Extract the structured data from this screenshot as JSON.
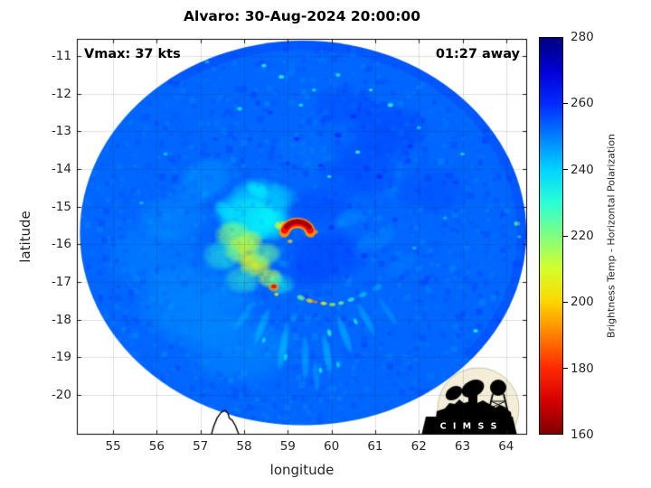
{
  "title": "Alvaro: 30-Aug-2024 20:00:00",
  "annotations": {
    "vmax": "Vmax: 37 kts",
    "eta": "01:27 away"
  },
  "axes": {
    "xlabel": "longitude",
    "ylabel": "latitude",
    "xticks": [
      55,
      56,
      57,
      58,
      59,
      60,
      61,
      62,
      63,
      64
    ],
    "yticks": [
      -11,
      -12,
      -13,
      -14,
      -15,
      -16,
      -17,
      -18,
      -19,
      -20
    ]
  },
  "colorbar": {
    "label": "Brightness Temp - Horizontal Polarization",
    "ticks": [
      280,
      260,
      240,
      220,
      200,
      180,
      160
    ],
    "range": [
      160,
      280
    ],
    "colormap": "jet-reversed"
  },
  "logo": {
    "text": "C I M S S"
  },
  "chart_data": {
    "type": "heatmap",
    "title": "Alvaro: 30-Aug-2024 20:00:00",
    "storm": {
      "name": "Alvaro",
      "vmax_kts": 37,
      "time_to_pass": "01:27 away",
      "datetime": "30-Aug-2024 20:00:00"
    },
    "xlabel": "longitude",
    "ylabel": "latitude",
    "value_label": "Brightness Temp - Horizontal Polarization",
    "value_range_k": [
      160,
      280
    ],
    "xlim": [
      54.17,
      64.48
    ],
    "ylim": [
      -21.06,
      -10.54
    ],
    "grid": true,
    "disc": {
      "center_lon": 59.35,
      "center_lat": -15.7,
      "radius_deg": 5.11
    },
    "base_temp_k": 253,
    "noise": {
      "seed": 42,
      "pass1": {
        "count": 2600,
        "amp": 6,
        "alpha": 0.45,
        "size": 5
      },
      "pass2": {
        "count": 1500,
        "amp": 5,
        "alpha": 0.14,
        "size": 5
      }
    },
    "shading": [
      [
        58.35,
        -14.9,
        238,
        0.8,
        0.7,
        0,
        0.8
      ],
      [
        58.15,
        -15.35,
        233,
        0.75,
        0.6,
        0,
        0.85
      ],
      [
        58.55,
        -15.45,
        236,
        0.6,
        0.5,
        0,
        0.8
      ],
      [
        57.9,
        -15.15,
        240,
        0.65,
        0.55,
        0,
        0.7
      ],
      [
        58.75,
        -14.75,
        242,
        0.5,
        0.4,
        0,
        0.6
      ],
      [
        57.75,
        -15.75,
        220,
        0.45,
        0.4,
        0,
        0.85
      ],
      [
        57.95,
        -16.15,
        210,
        0.45,
        0.4,
        0,
        0.9
      ],
      [
        58.25,
        -16.55,
        208,
        0.4,
        0.35,
        0,
        0.9
      ],
      [
        58.6,
        -16.9,
        213,
        0.32,
        0.28,
        0,
        0.85
      ],
      [
        58.15,
        -15.9,
        215,
        0.32,
        0.3,
        0,
        0.8
      ],
      [
        58.5,
        -16.25,
        222,
        0.38,
        0.33,
        0,
        0.7
      ],
      [
        57.5,
        -16.3,
        230,
        0.5,
        0.45,
        0,
        0.6
      ],
      [
        57.95,
        -16.95,
        228,
        0.45,
        0.4,
        0,
        0.6
      ],
      [
        58.85,
        -17.05,
        232,
        0.35,
        0.3,
        0,
        0.6
      ],
      [
        56.9,
        -17.6,
        246,
        1.5,
        1.2,
        0,
        0.5
      ],
      [
        57.9,
        -18.8,
        247,
        1.4,
        1.0,
        0,
        0.5
      ],
      [
        55.9,
        -16.3,
        248,
        1.2,
        1.0,
        0,
        0.45
      ],
      [
        57.1,
        -14.3,
        244,
        0.8,
        0.6,
        -30,
        0.4
      ],
      [
        56.35,
        -15.3,
        246,
        0.9,
        0.7,
        0,
        0.4
      ],
      [
        59.9,
        -16.3,
        259,
        1.0,
        0.8,
        0,
        0.5
      ],
      [
        59.45,
        -16.8,
        257,
        0.65,
        0.5,
        0,
        0.5
      ],
      [
        59.75,
        -15.0,
        258,
        0.8,
        0.6,
        0,
        0.45
      ],
      [
        60.6,
        -14.0,
        259,
        1.0,
        0.8,
        0,
        0.4
      ],
      [
        61.3,
        -13.0,
        260,
        1.0,
        0.8,
        0,
        0.4
      ],
      [
        62.3,
        -14.6,
        258,
        0.9,
        0.7,
        0,
        0.35
      ],
      [
        60.3,
        -12.3,
        259,
        0.8,
        0.6,
        0,
        0.35
      ],
      [
        61.0,
        -15.9,
        248,
        0.6,
        0.3,
        -25,
        0.5
      ],
      [
        61.6,
        -16.55,
        250,
        0.5,
        0.28,
        -35,
        0.5
      ],
      [
        60.4,
        -15.3,
        247,
        0.4,
        0.25,
        -20,
        0.5
      ],
      [
        63.2,
        -16.2,
        252,
        0.8,
        0.6,
        0,
        0.35
      ],
      [
        59.5,
        -13.6,
        250,
        0.9,
        0.5,
        10,
        0.35
      ],
      [
        60.9,
        -17.9,
        252,
        0.8,
        0.5,
        -40,
        0.4
      ]
    ],
    "features": [
      [
        58.85,
        -15.5,
        207,
        0.18,
        0.14,
        0,
        0.9
      ],
      [
        59.05,
        -15.92,
        200,
        0.07,
        0.06,
        0,
        0.95
      ],
      [
        59.63,
        -15.67,
        193,
        0.08,
        0.07,
        0,
        0.95
      ],
      [
        58.68,
        -17.14,
        193,
        0.14,
        0.13,
        0,
        0.95
      ],
      [
        58.68,
        -17.12,
        172,
        0.08,
        0.07,
        0,
        1
      ],
      [
        58.74,
        -17.33,
        203,
        0.06,
        0.06,
        0,
        0.9
      ],
      [
        59.3,
        -17.42,
        220,
        0.11,
        0.08,
        20,
        0.85
      ],
      [
        59.5,
        -17.5,
        200,
        0.1,
        0.07,
        15,
        0.9
      ],
      [
        59.63,
        -17.53,
        190,
        0.07,
        0.05,
        10,
        0.9
      ],
      [
        59.82,
        -17.57,
        205,
        0.09,
        0.06,
        5,
        0.9
      ],
      [
        60.02,
        -17.6,
        212,
        0.09,
        0.06,
        0,
        0.85
      ],
      [
        60.22,
        -17.56,
        218,
        0.08,
        0.06,
        -10,
        0.85
      ],
      [
        60.45,
        -17.47,
        228,
        0.1,
        0.07,
        -20,
        0.8
      ],
      [
        60.72,
        -17.34,
        240,
        0.12,
        0.08,
        -25,
        0.75
      ],
      [
        61.05,
        -17.15,
        244,
        0.14,
        0.09,
        -30,
        0.7
      ],
      [
        58.3,
        -14.55,
        236,
        0.3,
        0.22,
        30,
        0.7
      ],
      [
        57.55,
        -15.1,
        237,
        0.3,
        0.22,
        40,
        0.6
      ]
    ],
    "core_arcs": [
      [
        59.22,
        -15.73,
        0.3,
        0.26,
        190,
        350,
        192,
        0.95
      ],
      [
        59.22,
        -15.73,
        0.31,
        0.17,
        200,
        340,
        176,
        1
      ],
      [
        59.23,
        -15.72,
        0.32,
        0.11,
        215,
        325,
        164,
        1
      ]
    ],
    "streaks": [
      [
        58.4,
        -18.2,
        240,
        0.5,
        0.12,
        112,
        0.5
      ],
      [
        58.9,
        -18.7,
        238,
        0.6,
        0.13,
        100,
        0.5
      ],
      [
        59.4,
        -19.0,
        241,
        0.55,
        0.12,
        90,
        0.5
      ],
      [
        59.9,
        -18.9,
        239,
        0.5,
        0.12,
        80,
        0.5
      ],
      [
        60.3,
        -18.4,
        240,
        0.5,
        0.12,
        70,
        0.5
      ],
      [
        60.8,
        -18.0,
        242,
        0.45,
        0.11,
        62,
        0.5
      ],
      [
        58.0,
        -17.9,
        243,
        0.45,
        0.11,
        122,
        0.45
      ],
      [
        59.65,
        -19.5,
        243,
        0.4,
        0.1,
        86,
        0.45
      ],
      [
        61.3,
        -17.8,
        245,
        0.4,
        0.1,
        55,
        0.4
      ],
      [
        59.95,
        -18.35,
        230,
        0.1,
        0.07,
        75,
        0.85
      ],
      [
        60.55,
        -18.05,
        233,
        0.09,
        0.06,
        65,
        0.85
      ],
      [
        58.95,
        -19.0,
        234,
        0.09,
        0.06,
        100,
        0.85
      ],
      [
        59.75,
        -19.35,
        232,
        0.08,
        0.06,
        85,
        0.85
      ],
      [
        60.15,
        -19.2,
        236,
        0.08,
        0.06,
        78,
        0.8
      ],
      [
        58.45,
        -18.55,
        236,
        0.08,
        0.06,
        110,
        0.8
      ]
    ],
    "specks": [
      [
        58.45,
        -11.25,
        230,
        0.07
      ],
      [
        58.85,
        -11.55,
        228,
        0.08
      ],
      [
        59.6,
        -11.9,
        236,
        0.06
      ],
      [
        60.15,
        -11.5,
        233,
        0.07
      ],
      [
        61.35,
        -12.3,
        230,
        0.08
      ],
      [
        62.0,
        -12.9,
        235,
        0.06
      ],
      [
        57.9,
        -12.4,
        233,
        0.07
      ],
      [
        57.15,
        -11.15,
        232,
        0.06
      ],
      [
        60.6,
        -13.55,
        228,
        0.07
      ],
      [
        59.95,
        -14.2,
        232,
        0.06
      ],
      [
        64.25,
        -15.45,
        222,
        0.09
      ],
      [
        64.3,
        -15.8,
        228,
        0.06
      ],
      [
        63.3,
        -18.3,
        230,
        0.07
      ],
      [
        56.2,
        -13.6,
        238,
        0.06
      ],
      [
        55.65,
        -14.9,
        240,
        0.06
      ],
      [
        61.9,
        -16.1,
        240,
        0.06
      ],
      [
        62.6,
        -15.3,
        242,
        0.06
      ],
      [
        59.3,
        -12.3,
        234,
        0.06
      ],
      [
        60.9,
        -11.9,
        231,
        0.06
      ],
      [
        63.0,
        -13.6,
        236,
        0.06
      ]
    ],
    "dark_specks": [
      [
        60.15,
        -13.1,
        263,
        0.1
      ],
      [
        60.5,
        -12.6,
        262,
        0.09
      ],
      [
        59.2,
        -13.2,
        262,
        0.08
      ],
      [
        61.1,
        -14.2,
        263,
        0.09
      ],
      [
        61.8,
        -13.4,
        262,
        0.08
      ],
      [
        60.0,
        -15.55,
        262,
        0.09
      ],
      [
        60.75,
        -16.3,
        260,
        0.1
      ],
      [
        62.2,
        -16.9,
        258,
        0.09
      ],
      [
        59.75,
        -13.9,
        263,
        0.07
      ],
      [
        58.6,
        -12.5,
        260,
        0.08
      ],
      [
        57.35,
        -13.2,
        258,
        0.07
      ],
      [
        61.45,
        -15.35,
        260,
        0.08
      ],
      [
        62.85,
        -14.35,
        259,
        0.08
      ],
      [
        60.35,
        -16.85,
        258,
        0.08
      ],
      [
        59.0,
        -13.85,
        261,
        0.07
      ]
    ],
    "island_outline": [
      [
        57.24,
        -21.1
      ],
      [
        57.3,
        -20.85
      ],
      [
        57.38,
        -20.62
      ],
      [
        57.47,
        -20.47
      ],
      [
        57.56,
        -20.42
      ],
      [
        57.63,
        -20.49
      ],
      [
        57.66,
        -20.62
      ],
      [
        57.73,
        -20.68
      ],
      [
        57.8,
        -20.82
      ],
      [
        57.86,
        -21.0
      ],
      [
        57.9,
        -21.1
      ]
    ]
  }
}
